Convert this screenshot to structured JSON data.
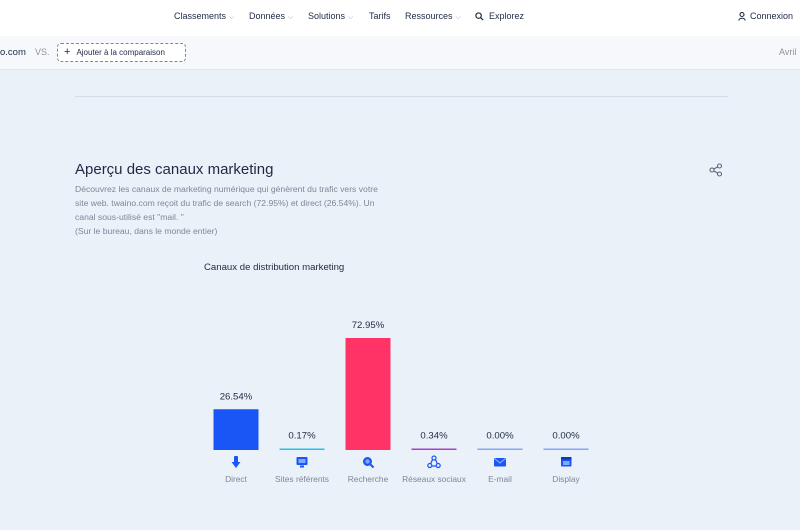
{
  "nav": {
    "items": [
      {
        "label": "Classements"
      },
      {
        "label": "Données"
      },
      {
        "label": "Solutions"
      },
      {
        "label": "Tarifs"
      },
      {
        "label": "Ressources"
      },
      {
        "label": "Explorez"
      }
    ],
    "login_label": "Connexion"
  },
  "compare": {
    "domain": "o.com",
    "vs": "VS.",
    "add_label": "Ajouter à la comparaison",
    "month": "Avril"
  },
  "section": {
    "title": "Aperçu des canaux marketing",
    "description": [
      "Découvrez les canaux de marketing numérique qui génèrent du trafic vers votre",
      "site web. twaino.com reçoit du trafic de search (72.95%) et direct (26.54%). Un",
      "canal sous-utilisé est \"mail. \"",
      "(Sur le bureau, dans le monde entier)"
    ]
  },
  "chart_data": {
    "type": "bar",
    "title": "Canaux de distribution marketing",
    "categories": [
      "Direct",
      "Sites référents",
      "Recherche",
      "Réseaux sociaux",
      "E-mail",
      "Display"
    ],
    "values": [
      26.54,
      0.17,
      72.95,
      0.34,
      0.0,
      0.0
    ],
    "value_labels": [
      "26.54%",
      "0.17%",
      "72.95%",
      "0.34%",
      "0.00%",
      "0.00%"
    ],
    "colors": [
      "#1a56f6",
      "#20c4e8",
      "#ff3366",
      "#a73fd4",
      "#7fa8ff",
      "#7fa8ff"
    ],
    "icons": [
      "direct-icon",
      "referral-icon",
      "search-icon",
      "social-icon",
      "email-icon",
      "display-icon"
    ],
    "ylim": [
      0,
      72.95
    ],
    "xlabel": "",
    "ylabel": "",
    "grid": false
  }
}
